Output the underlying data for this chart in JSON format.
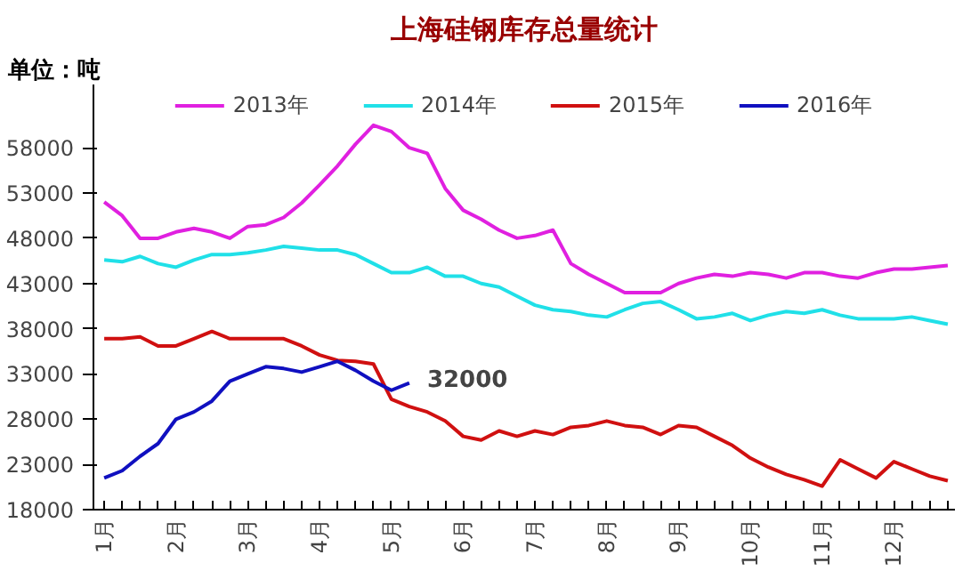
{
  "chart_data": {
    "type": "line",
    "title": "上海硅钢库存总量统计",
    "ylabel": "单位：吨",
    "x": [
      1,
      1.25,
      1.5,
      1.75,
      2,
      2.25,
      2.5,
      2.75,
      3,
      3.25,
      3.5,
      3.75,
      4,
      4.25,
      4.5,
      4.75,
      5,
      5.25,
      5.5,
      5.75,
      6,
      6.25,
      6.5,
      6.75,
      7,
      7.25,
      7.5,
      7.75,
      8,
      8.25,
      8.5,
      8.75,
      9,
      9.25,
      9.5,
      9.75,
      10,
      10.25,
      10.5,
      10.75,
      11,
      11.25,
      11.5,
      11.75,
      12,
      12.25,
      12.5,
      12.75
    ],
    "series": [
      {
        "name": "2013年",
        "color": "#e020e0",
        "values": [
          52000,
          50500,
          48000,
          48000,
          48700,
          49100,
          48700,
          48000,
          49300,
          49500,
          50300,
          51900,
          53900,
          56000,
          58400,
          60500,
          59800,
          58000,
          57400,
          53500,
          51100,
          50100,
          48900,
          48000,
          48300,
          48900,
          45200,
          44000,
          43000,
          42000,
          42000,
          42000,
          43000,
          43600,
          44000,
          43800,
          44200,
          44000,
          43600,
          44200,
          44200,
          43800,
          43600,
          44200,
          44600,
          44600,
          44800,
          45000
        ]
      },
      {
        "name": "2014年",
        "color": "#20e0e8",
        "values": [
          45600,
          45400,
          46000,
          45200,
          44800,
          45600,
          46200,
          46200,
          46400,
          46700,
          47100,
          46900,
          46700,
          46700,
          46200,
          45200,
          44200,
          44200,
          44800,
          43800,
          43800,
          43000,
          42600,
          41600,
          40600,
          40100,
          39900,
          39500,
          39300,
          40100,
          40800,
          41000,
          40100,
          39100,
          39300,
          39700,
          38900,
          39500,
          39900,
          39700,
          40100,
          39500,
          39100,
          39100,
          39100,
          39300,
          38900,
          38500
        ]
      },
      {
        "name": "2015年",
        "color": "#d01010",
        "values": [
          36900,
          36900,
          37100,
          36100,
          36100,
          36900,
          37700,
          36900,
          36900,
          36900,
          36900,
          36100,
          35100,
          34500,
          34400,
          34100,
          30200,
          29400,
          28800,
          27800,
          26100,
          25700,
          26700,
          26100,
          26700,
          26300,
          27100,
          27300,
          27800,
          27300,
          27100,
          26300,
          27300,
          27100,
          26100,
          25100,
          23700,
          22700,
          21900,
          21300,
          20600,
          23500,
          22500,
          21500,
          23300,
          22500,
          21700,
          21200
        ]
      },
      {
        "name": "2016年",
        "color": "#1010c0",
        "values": [
          21500,
          22300,
          23900,
          25300,
          28000,
          28800,
          30000,
          32200,
          33000,
          33800,
          33600,
          33200,
          33800,
          34400,
          33400,
          32200,
          31200,
          32000,
          null,
          null,
          null,
          null,
          null,
          null,
          null,
          null,
          null,
          null,
          null,
          null,
          null,
          null,
          null,
          null,
          null,
          null,
          null,
          null,
          null,
          null,
          null,
          null,
          null,
          null,
          null,
          null,
          null,
          null
        ]
      }
    ],
    "annotations": [
      {
        "text": "32000",
        "x": 5.25,
        "y": 32000
      }
    ],
    "xlim": [
      0.85,
      12.85
    ],
    "xticks": [
      {
        "value": 1,
        "label": "1月"
      },
      {
        "value": 2,
        "label": "2月"
      },
      {
        "value": 3,
        "label": "3月"
      },
      {
        "value": 4,
        "label": "4月"
      },
      {
        "value": 5,
        "label": "5月"
      },
      {
        "value": 6,
        "label": "6月"
      },
      {
        "value": 7,
        "label": "7月"
      },
      {
        "value": 8,
        "label": "8月"
      },
      {
        "value": 9,
        "label": "9月"
      },
      {
        "value": 10,
        "label": "10月"
      },
      {
        "value": 11,
        "label": "11月"
      },
      {
        "value": 12,
        "label": "12月"
      }
    ],
    "ylim": [
      18000,
      65000
    ],
    "yticks": [
      18000,
      23000,
      28000,
      33000,
      38000,
      43000,
      48000,
      53000,
      58000
    ],
    "grid": false,
    "legend": "top",
    "marker": "none",
    "line_style": "solid"
  }
}
